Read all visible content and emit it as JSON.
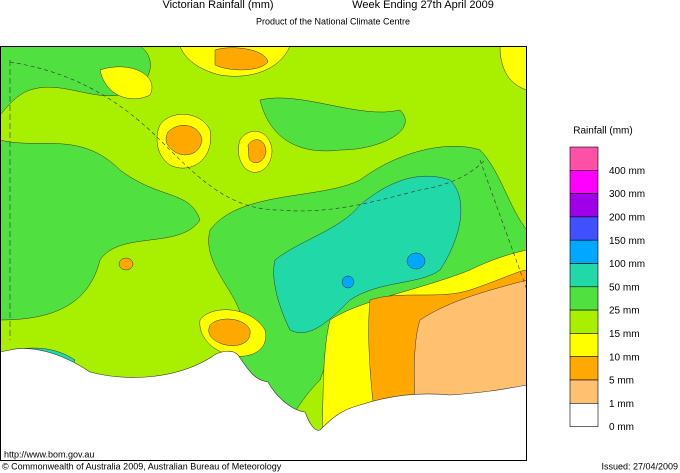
{
  "header": {
    "title": "Victorian Rainfall (mm)",
    "period": "Week Ending 27th April 2009",
    "subtitle": "Product of the National Climate Centre"
  },
  "legend": {
    "title": "Rainfall (mm)",
    "entries": [
      {
        "label": "400 mm",
        "color": "#ff50a8"
      },
      {
        "label": "300 mm",
        "color": "#ff00ff"
      },
      {
        "label": "200 mm",
        "color": "#a000e8"
      },
      {
        "label": "150 mm",
        "color": "#4050ff"
      },
      {
        "label": "100 mm",
        "color": "#00a8ff"
      },
      {
        "label": "50 mm",
        "color": "#20d8a8"
      },
      {
        "label": "25 mm",
        "color": "#50e040"
      },
      {
        "label": "15 mm",
        "color": "#a8f000"
      },
      {
        "label": "10 mm",
        "color": "#ffff00"
      },
      {
        "label": "5 mm",
        "color": "#ffa800"
      },
      {
        "label": "1 mm",
        "color": "#ffc070"
      },
      {
        "label": "0 mm",
        "color": "#ffffff"
      }
    ]
  },
  "footer": {
    "url": "http://www.bom.gov.au",
    "copyright": "© Commonwealth of Australia 2009, Australian Bureau of Meteorology",
    "issued": "Issued: 27/04/2009"
  }
}
